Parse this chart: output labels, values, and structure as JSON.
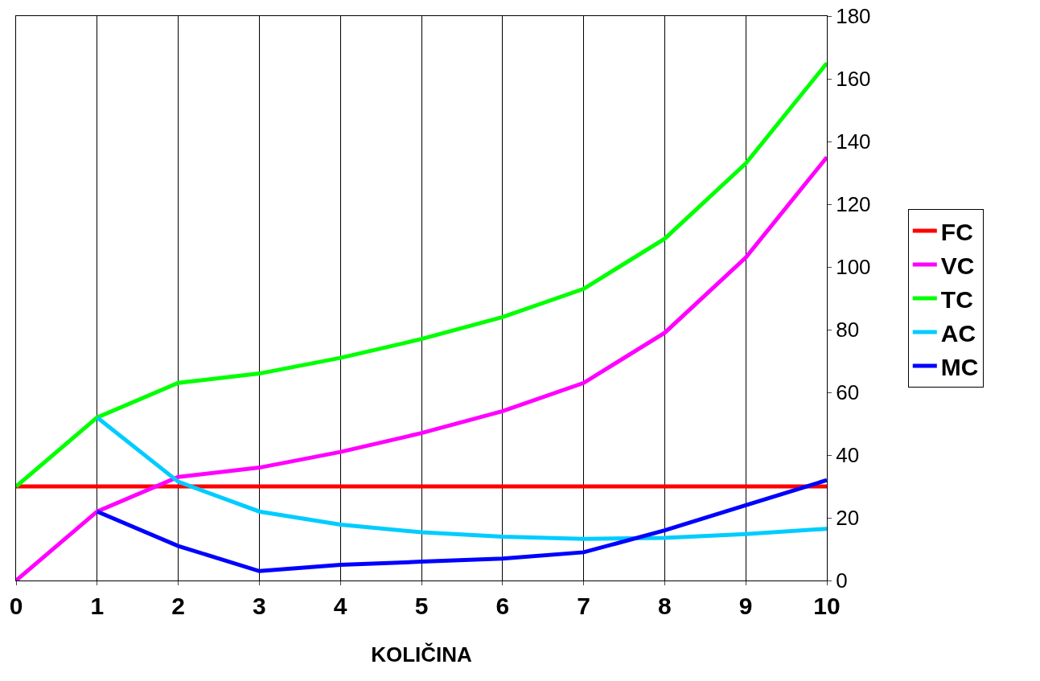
{
  "chart_data": {
    "type": "line",
    "xlabel": "KOLIČINA",
    "x": [
      0,
      1,
      2,
      3,
      4,
      5,
      6,
      7,
      8,
      9,
      10
    ],
    "xlim": [
      0,
      10
    ],
    "xticks": [
      0,
      1,
      2,
      3,
      4,
      5,
      6,
      7,
      8,
      9,
      10
    ],
    "ylim": [
      0,
      180
    ],
    "yticks": [
      0,
      20,
      40,
      60,
      80,
      100,
      120,
      140,
      160,
      180
    ],
    "grid": "x",
    "legend": "right",
    "marker": "none",
    "line_style": "solid",
    "series": [
      {
        "name": "FC",
        "color": "#ff0000",
        "values": [
          30,
          30,
          30,
          30,
          30,
          30,
          30,
          30,
          30,
          30,
          30
        ]
      },
      {
        "name": "VC",
        "color": "#ff00ff",
        "values": [
          0,
          22,
          33,
          36,
          41,
          47,
          54,
          63,
          79,
          103,
          135
        ]
      },
      {
        "name": "TC",
        "color": "#00ff00",
        "values": [
          30,
          52,
          63,
          66,
          71,
          77,
          84,
          93,
          109,
          133,
          165
        ]
      },
      {
        "name": "AC",
        "color": "#00ccff",
        "values": [
          null,
          52,
          31.5,
          22,
          17.8,
          15.4,
          14,
          13.3,
          13.6,
          14.8,
          16.5
        ]
      },
      {
        "name": "MC",
        "color": "#0000ff",
        "values": [
          null,
          22,
          11,
          3,
          5,
          6,
          7,
          9,
          16,
          24,
          32
        ]
      }
    ]
  }
}
